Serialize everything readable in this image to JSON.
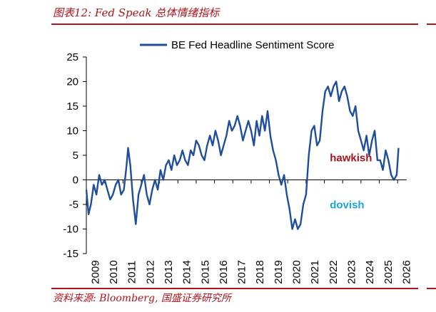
{
  "figure": {
    "title": "图表12:  Fed Speak 总体情绪指标",
    "source": "资料来源:  Bloomberg,  国盛证券研究所"
  },
  "colors": {
    "accent": "#b3141c",
    "line": "#1f4e9c",
    "hawkish": "#a3141c",
    "dovish": "#1aa3dc"
  },
  "chart_data": {
    "type": "line",
    "title": "",
    "xlabel": "",
    "ylabel": "",
    "ylim": [
      -15,
      25
    ],
    "xlim": [
      2009,
      2026.5
    ],
    "yticks": [
      "25",
      "20",
      "15",
      "10",
      "5",
      "0",
      "-5",
      "-10",
      "-15"
    ],
    "xticks": [
      "2009",
      "2010",
      "2011",
      "2012",
      "2013",
      "2014",
      "2015",
      "2016",
      "2017",
      "2018",
      "2019",
      "2020",
      "2021",
      "2022",
      "2023",
      "2024",
      "2025",
      "2026"
    ],
    "legend": "top-center",
    "series": [
      {
        "name": "BE Fed Headline Sentiment Score",
        "x": [
          2009.0,
          2009.12,
          2009.25,
          2009.4,
          2009.55,
          2009.7,
          2009.85,
          2010.0,
          2010.15,
          2010.3,
          2010.45,
          2010.6,
          2010.75,
          2010.9,
          2011.05,
          2011.2,
          2011.28,
          2011.4,
          2011.55,
          2011.7,
          2011.85,
          2012.0,
          2012.15,
          2012.3,
          2012.45,
          2012.6,
          2012.75,
          2012.9,
          2013.05,
          2013.2,
          2013.35,
          2013.5,
          2013.65,
          2013.8,
          2013.95,
          2014.1,
          2014.25,
          2014.4,
          2014.55,
          2014.7,
          2014.85,
          2015.0,
          2015.15,
          2015.3,
          2015.45,
          2015.6,
          2015.75,
          2015.9,
          2016.05,
          2016.2,
          2016.35,
          2016.5,
          2016.65,
          2016.8,
          2016.95,
          2017.1,
          2017.25,
          2017.4,
          2017.55,
          2017.7,
          2017.85,
          2018.0,
          2018.15,
          2018.3,
          2018.45,
          2018.6,
          2018.75,
          2018.9,
          2019.05,
          2019.2,
          2019.35,
          2019.5,
          2019.65,
          2019.8,
          2019.95,
          2020.1,
          2020.25,
          2020.4,
          2020.55,
          2020.7,
          2020.85,
          2021.0,
          2021.15,
          2021.3,
          2021.45,
          2021.6,
          2021.75,
          2021.9,
          2022.05,
          2022.2,
          2022.35,
          2022.5,
          2022.65,
          2022.8,
          2022.95,
          2023.1,
          2023.25,
          2023.4,
          2023.55,
          2023.7,
          2023.85,
          2024.0,
          2024.15,
          2024.3,
          2024.45,
          2024.6,
          2024.75,
          2024.9,
          2025.05,
          2025.2,
          2025.35,
          2025.5,
          2025.65,
          2025.8,
          2025.95,
          2026.05
        ],
        "values": [
          -2,
          -7,
          -5,
          -1,
          -3,
          1,
          -1,
          0,
          -2,
          -4,
          -3,
          -1,
          0,
          -3,
          -2,
          3,
          6.5,
          3,
          -4,
          -9,
          -3,
          -1,
          1,
          -3,
          -5,
          -2,
          0,
          -2,
          2,
          0,
          3,
          4,
          2,
          5,
          3,
          4,
          6,
          4,
          3,
          6,
          5,
          8,
          7,
          5,
          4,
          7,
          9,
          7,
          10,
          8,
          5,
          7,
          9,
          12,
          10,
          11,
          13,
          11,
          8,
          10,
          12,
          10,
          7,
          12,
          9,
          13,
          10,
          14,
          9,
          6,
          4,
          1,
          -1,
          1,
          -3,
          -6,
          -10,
          -8,
          -10,
          -9,
          -5,
          -3,
          5,
          10,
          11,
          7,
          8,
          14,
          18,
          19,
          17,
          19,
          20,
          16,
          18,
          19,
          17,
          14,
          13,
          15,
          10,
          8,
          6,
          9,
          5,
          8,
          10,
          4,
          4,
          2,
          6,
          4,
          1,
          0,
          1,
          6.5
        ]
      }
    ],
    "annotations": [
      {
        "text": "hawkish",
        "x": 2022.3,
        "y": 3.8
      },
      {
        "text": "dovish",
        "x": 2022.3,
        "y": -5.8
      }
    ]
  }
}
